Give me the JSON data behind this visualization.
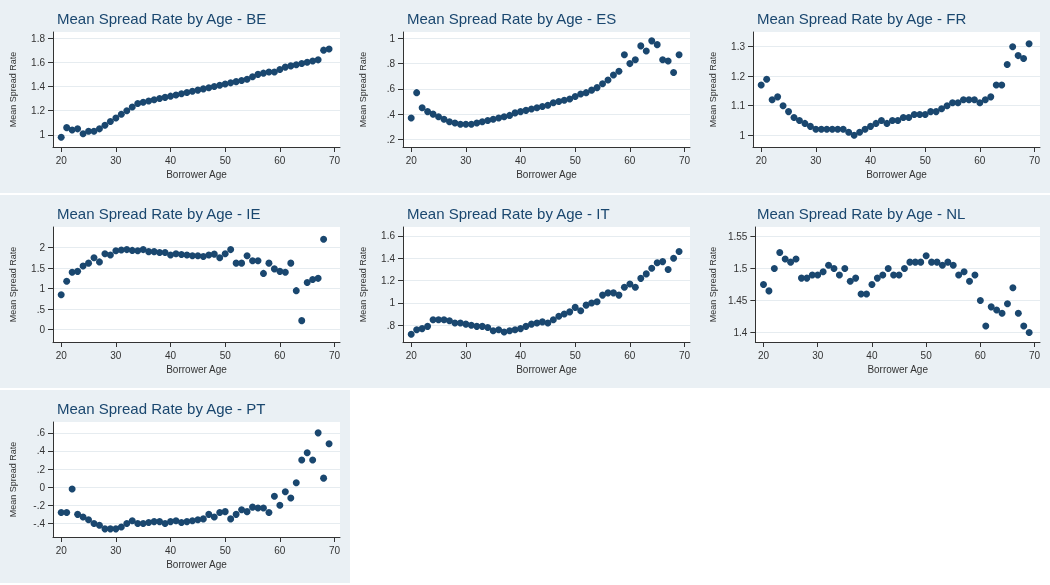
{
  "chart_data": [
    {
      "type": "scatter",
      "title": "Mean Spread Rate by Age - BE",
      "xlabel": "Borrower Age",
      "ylabel": "Mean Spread Rate",
      "marker": "circle",
      "grid": "y",
      "xlim": [
        18.5,
        71
      ],
      "xticks": [
        20,
        30,
        40,
        50,
        60,
        70
      ],
      "ylim": [
        0.9,
        1.85
      ],
      "yticks": [
        1,
        1.2,
        1.4,
        1.6,
        1.8
      ],
      "x": [
        20,
        21,
        22,
        23,
        24,
        25,
        26,
        27,
        28,
        29,
        30,
        31,
        32,
        33,
        34,
        35,
        36,
        37,
        38,
        39,
        40,
        41,
        42,
        43,
        44,
        45,
        46,
        47,
        48,
        49,
        50,
        51,
        52,
        53,
        54,
        55,
        56,
        57,
        58,
        59,
        60,
        61,
        62,
        63,
        64,
        65,
        66,
        67,
        68,
        69
      ],
      "series": [
        {
          "color": "#1a476f",
          "values": [
            0.98,
            1.06,
            1.04,
            1.05,
            1.01,
            1.03,
            1.03,
            1.05,
            1.08,
            1.11,
            1.14,
            1.17,
            1.2,
            1.23,
            1.26,
            1.27,
            1.28,
            1.29,
            1.3,
            1.31,
            1.32,
            1.33,
            1.34,
            1.35,
            1.36,
            1.37,
            1.38,
            1.39,
            1.4,
            1.41,
            1.42,
            1.43,
            1.44,
            1.45,
            1.46,
            1.48,
            1.5,
            1.51,
            1.52,
            1.52,
            1.54,
            1.56,
            1.57,
            1.58,
            1.59,
            1.6,
            1.61,
            1.62,
            1.7,
            1.71
          ]
        }
      ]
    },
    {
      "type": "scatter",
      "title": "Mean Spread Rate by Age - ES",
      "xlabel": "Borrower Age",
      "ylabel": "Mean Spread Rate",
      "marker": "circle",
      "grid": "y",
      "xlim": [
        18.5,
        71
      ],
      "xticks": [
        20,
        30,
        40,
        50,
        60,
        70
      ],
      "ylim": [
        0.14,
        1.05
      ],
      "yticks": [
        {
          "value": 0.2,
          "label": ".2"
        },
        {
          "value": 0.4,
          "label": ".4"
        },
        {
          "value": 0.6,
          "label": ".6"
        },
        {
          "value": 0.8,
          "label": ".8"
        },
        1
      ],
      "x": [
        20,
        21,
        22,
        23,
        24,
        25,
        26,
        27,
        28,
        29,
        30,
        31,
        32,
        33,
        34,
        35,
        36,
        37,
        38,
        39,
        40,
        41,
        42,
        43,
        44,
        45,
        46,
        47,
        48,
        49,
        50,
        51,
        52,
        53,
        54,
        55,
        56,
        57,
        58,
        59,
        60,
        61,
        62,
        63,
        64,
        65,
        66,
        67,
        68,
        69
      ],
      "series": [
        {
          "color": "#1a476f",
          "values": [
            0.37,
            0.57,
            0.45,
            0.42,
            0.4,
            0.38,
            0.36,
            0.34,
            0.33,
            0.32,
            0.32,
            0.32,
            0.33,
            0.34,
            0.35,
            0.36,
            0.37,
            0.38,
            0.39,
            0.41,
            0.42,
            0.43,
            0.44,
            0.45,
            0.46,
            0.47,
            0.49,
            0.5,
            0.51,
            0.52,
            0.54,
            0.56,
            0.57,
            0.59,
            0.61,
            0.64,
            0.67,
            0.71,
            0.74,
            0.87,
            0.8,
            0.83,
            0.94,
            0.9,
            0.98,
            0.95,
            0.83,
            0.82,
            0.73,
            0.87
          ]
        }
      ]
    },
    {
      "type": "scatter",
      "title": "Mean Spread Rate by Age - FR",
      "xlabel": "Borrower Age",
      "ylabel": "Mean Spread Rate",
      "marker": "circle",
      "grid": "y",
      "xlim": [
        18.5,
        71
      ],
      "xticks": [
        20,
        30,
        40,
        50,
        60,
        70
      ],
      "ylim": [
        0.96,
        1.35
      ],
      "yticks": [
        1,
        1.1,
        1.2,
        1.3
      ],
      "x": [
        20,
        21,
        22,
        23,
        24,
        25,
        26,
        27,
        28,
        29,
        30,
        31,
        32,
        33,
        34,
        35,
        36,
        37,
        38,
        39,
        40,
        41,
        42,
        43,
        44,
        45,
        46,
        47,
        48,
        49,
        50,
        51,
        52,
        53,
        54,
        55,
        56,
        57,
        58,
        59,
        60,
        61,
        62,
        63,
        64,
        65,
        66,
        67,
        68,
        69
      ],
      "series": [
        {
          "color": "#1a476f",
          "values": [
            1.17,
            1.19,
            1.12,
            1.13,
            1.1,
            1.08,
            1.06,
            1.05,
            1.04,
            1.03,
            1.02,
            1.02,
            1.02,
            1.02,
            1.02,
            1.02,
            1.01,
            1,
            1.01,
            1.02,
            1.03,
            1.04,
            1.05,
            1.04,
            1.05,
            1.05,
            1.06,
            1.06,
            1.07,
            1.07,
            1.07,
            1.08,
            1.08,
            1.09,
            1.1,
            1.11,
            1.11,
            1.12,
            1.12,
            1.12,
            1.11,
            1.12,
            1.13,
            1.17,
            1.17,
            1.24,
            1.3,
            1.27,
            1.26,
            1.31
          ]
        }
      ]
    },
    {
      "type": "scatter",
      "title": "Mean Spread Rate by Age - IE",
      "xlabel": "Borrower Age",
      "ylabel": "Mean Spread Rate",
      "marker": "circle",
      "grid": "y",
      "xlim": [
        18.5,
        71
      ],
      "xticks": [
        20,
        30,
        40,
        50,
        60,
        70
      ],
      "ylim": [
        -0.3,
        2.5
      ],
      "yticks": [
        0,
        {
          "value": 0.5,
          "label": ".5"
        },
        1,
        1.5,
        2
      ],
      "x": [
        20,
        21,
        22,
        23,
        24,
        25,
        26,
        27,
        28,
        29,
        30,
        31,
        32,
        33,
        34,
        35,
        36,
        37,
        38,
        39,
        40,
        41,
        42,
        43,
        44,
        45,
        46,
        47,
        48,
        49,
        50,
        51,
        52,
        53,
        54,
        55,
        56,
        57,
        58,
        59,
        60,
        61,
        62,
        63,
        64,
        65,
        66,
        67,
        68
      ],
      "series": [
        {
          "color": "#1a476f",
          "values": [
            0.85,
            1.18,
            1.4,
            1.42,
            1.55,
            1.62,
            1.75,
            1.65,
            1.85,
            1.82,
            1.92,
            1.94,
            1.95,
            1.93,
            1.92,
            1.95,
            1.9,
            1.9,
            1.88,
            1.88,
            1.82,
            1.85,
            1.83,
            1.82,
            1.8,
            1.8,
            1.78,
            1.82,
            1.84,
            1.75,
            1.85,
            1.95,
            1.62,
            1.62,
            1.8,
            1.68,
            1.68,
            1.37,
            1.62,
            1.48,
            1.42,
            1.4,
            1.62,
            0.95,
            0.22,
            1.15,
            1.22,
            1.25,
            2.2
          ]
        }
      ]
    },
    {
      "type": "scatter",
      "title": "Mean Spread Rate by Age - IT",
      "xlabel": "Borrower Age",
      "ylabel": "Mean Spread Rate",
      "marker": "circle",
      "grid": "y",
      "xlim": [
        18.5,
        71
      ],
      "xticks": [
        20,
        30,
        40,
        50,
        60,
        70
      ],
      "ylim": [
        0.65,
        1.68
      ],
      "yticks": [
        {
          "value": 0.8,
          "label": ".8"
        },
        1,
        1.2,
        1.4,
        1.6
      ],
      "x": [
        20,
        21,
        22,
        23,
        24,
        25,
        26,
        27,
        28,
        29,
        30,
        31,
        32,
        33,
        34,
        35,
        36,
        37,
        38,
        39,
        40,
        41,
        42,
        43,
        44,
        45,
        46,
        47,
        48,
        49,
        50,
        51,
        52,
        53,
        54,
        55,
        56,
        57,
        58,
        59,
        60,
        61,
        62,
        63,
        64,
        65,
        66,
        67,
        68,
        69
      ],
      "series": [
        {
          "color": "#1a476f",
          "values": [
            0.72,
            0.76,
            0.77,
            0.79,
            0.85,
            0.85,
            0.85,
            0.84,
            0.82,
            0.82,
            0.81,
            0.8,
            0.79,
            0.79,
            0.78,
            0.75,
            0.76,
            0.74,
            0.75,
            0.76,
            0.77,
            0.79,
            0.81,
            0.82,
            0.83,
            0.82,
            0.85,
            0.88,
            0.9,
            0.92,
            0.96,
            0.93,
            0.98,
            1,
            1.01,
            1.07,
            1.09,
            1.09,
            1.07,
            1.14,
            1.17,
            1.14,
            1.22,
            1.26,
            1.31,
            1.36,
            1.37,
            1.3,
            1.4,
            1.46
          ]
        }
      ]
    },
    {
      "type": "scatter",
      "title": "Mean Spread Rate by Age - NL",
      "xlabel": "Borrower Age",
      "ylabel": "Mean Spread Rate",
      "marker": "circle",
      "grid": "y",
      "xlim": [
        18.5,
        71
      ],
      "xticks": [
        20,
        30,
        40,
        50,
        60,
        70
      ],
      "ylim": [
        1.385,
        1.565
      ],
      "yticks": [
        1.4,
        1.45,
        1.5,
        1.55
      ],
      "x": [
        20,
        21,
        22,
        23,
        24,
        25,
        26,
        27,
        28,
        29,
        30,
        31,
        32,
        33,
        34,
        35,
        36,
        37,
        38,
        39,
        40,
        41,
        42,
        43,
        44,
        45,
        46,
        47,
        48,
        49,
        50,
        51,
        52,
        53,
        54,
        55,
        56,
        57,
        58,
        59,
        60,
        61,
        62,
        63,
        64,
        65,
        66,
        67,
        68,
        69
      ],
      "series": [
        {
          "color": "#1a476f",
          "values": [
            1.475,
            1.465,
            1.5,
            1.525,
            1.515,
            1.51,
            1.515,
            1.485,
            1.485,
            1.49,
            1.49,
            1.495,
            1.505,
            1.5,
            1.49,
            1.5,
            1.48,
            1.485,
            1.46,
            1.46,
            1.475,
            1.485,
            1.49,
            1.5,
            1.49,
            1.49,
            1.5,
            1.51,
            1.51,
            1.51,
            1.52,
            1.51,
            1.51,
            1.505,
            1.51,
            1.505,
            1.49,
            1.495,
            1.48,
            1.49,
            1.45,
            1.41,
            1.44,
            1.435,
            1.43,
            1.445,
            1.47,
            1.43,
            1.41,
            1.4
          ]
        }
      ]
    },
    {
      "type": "scatter",
      "title": "Mean Spread Rate by Age - PT",
      "xlabel": "Borrower Age",
      "ylabel": "Mean Spread Rate",
      "marker": "circle",
      "grid": "y",
      "xlim": [
        18.5,
        71
      ],
      "xticks": [
        20,
        30,
        40,
        50,
        60,
        70
      ],
      "ylim": [
        -0.55,
        0.72
      ],
      "yticks": [
        {
          "value": -0.4,
          "label": "-.4"
        },
        {
          "value": -0.2,
          "label": "-.2"
        },
        0,
        {
          "value": 0.2,
          "label": ".2"
        },
        {
          "value": 0.4,
          "label": ".4"
        },
        {
          "value": 0.6,
          "label": ".6"
        }
      ],
      "x": [
        20,
        21,
        22,
        23,
        24,
        25,
        26,
        27,
        28,
        29,
        30,
        31,
        32,
        33,
        34,
        35,
        36,
        37,
        38,
        39,
        40,
        41,
        42,
        43,
        44,
        45,
        46,
        47,
        48,
        49,
        50,
        51,
        52,
        53,
        54,
        55,
        56,
        57,
        58,
        59,
        60,
        61,
        62,
        63,
        64,
        65,
        66,
        67,
        68,
        69
      ],
      "series": [
        {
          "color": "#1a476f",
          "values": [
            -0.28,
            -0.28,
            -0.02,
            -0.3,
            -0.33,
            -0.36,
            -0.4,
            -0.42,
            -0.46,
            -0.46,
            -0.46,
            -0.44,
            -0.4,
            -0.37,
            -0.4,
            -0.4,
            -0.39,
            -0.38,
            -0.38,
            -0.4,
            -0.38,
            -0.37,
            -0.39,
            -0.38,
            -0.37,
            -0.36,
            -0.35,
            -0.3,
            -0.33,
            -0.28,
            -0.27,
            -0.35,
            -0.3,
            -0.25,
            -0.27,
            -0.22,
            -0.23,
            -0.23,
            -0.28,
            -0.1,
            -0.2,
            -0.05,
            -0.12,
            0.05,
            0.3,
            0.38,
            0.3,
            0.6,
            0.1,
            0.48
          ]
        }
      ]
    }
  ]
}
